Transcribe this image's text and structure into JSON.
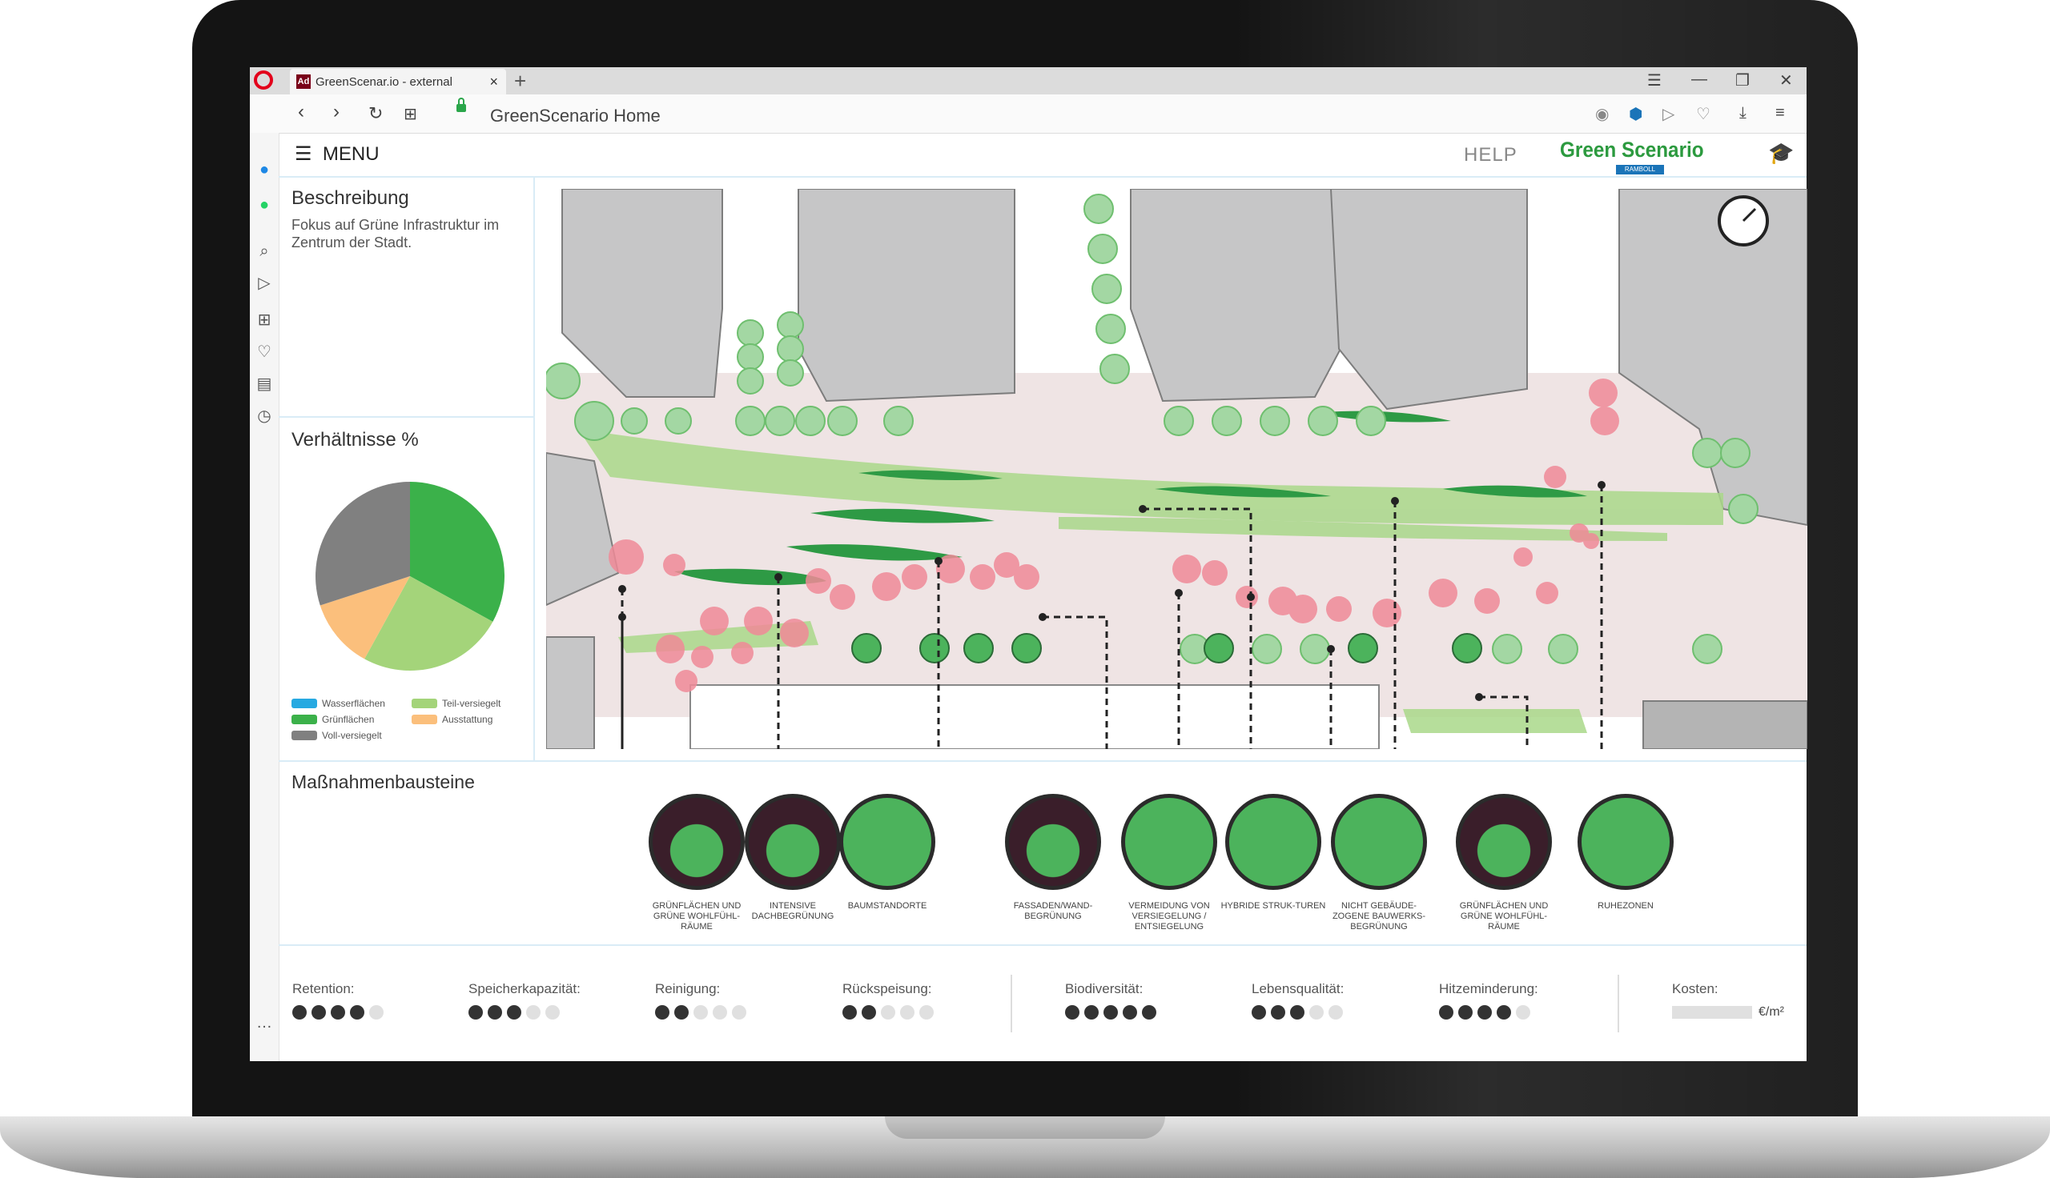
{
  "browser": {
    "tab_title": "GreenScenar.io - external",
    "tab_favicon": "Ad",
    "url": "GreenScenario Home"
  },
  "app": {
    "menu_label": "MENU",
    "help_label": "HELP",
    "logo_text": "Green Scenario",
    "logo_sub": "RAMBOLL"
  },
  "description": {
    "title": "Beschreibung",
    "text": "Fokus auf Grüne Infrastruktur im Zentrum der Stadt."
  },
  "ratios": {
    "title": "Verhältnisse %",
    "chart_data": {
      "type": "pie",
      "slices": [
        {
          "name": "Grünflächen",
          "value": 33,
          "color": "#3bb14a"
        },
        {
          "name": "Teil-versiegelt",
          "value": 25,
          "color": "#a4d47a"
        },
        {
          "name": "Ausstattung",
          "value": 12,
          "color": "#fbbf7c"
        },
        {
          "name": "Voll-versiegelt",
          "value": 30,
          "color": "#808080"
        }
      ],
      "legend": [
        {
          "name": "Wasserflächen",
          "color": "#27a9e1"
        },
        {
          "name": "Teil-versiegelt",
          "color": "#a4d47a"
        },
        {
          "name": "Grünflächen",
          "color": "#3bb14a"
        },
        {
          "name": "Ausstattung",
          "color": "#fbbf7c"
        },
        {
          "name": "Voll-versiegelt",
          "color": "#808080"
        }
      ]
    }
  },
  "measures": {
    "title": "Maßnahmenbausteine",
    "items": [
      {
        "label": "Grünflächen und grüne Wohlfühl-räume",
        "dark": true
      },
      {
        "label": "Intensive Dachbegrünung",
        "dark": true
      },
      {
        "label": "Baumstandorte",
        "dark": false
      },
      {
        "label": "Fassaden/Wand-begrünung",
        "dark": true
      },
      {
        "label": "Vermeidung von Versiegelung / Entsiegelung",
        "dark": false
      },
      {
        "label": "Hybride Struk-turen",
        "dark": false
      },
      {
        "label": "Nicht gebäude-zogene Bauwerks-begrünung",
        "dark": false
      },
      {
        "label": "Grünflächen und grüne Wohlfühl-räume",
        "dark": true
      },
      {
        "label": "Ruhezonen",
        "dark": false
      }
    ]
  },
  "ratings": [
    {
      "label": "Retention:",
      "score": 4
    },
    {
      "label": "Speicherkapazität:",
      "score": 3
    },
    {
      "label": "Reinigung:",
      "score": 2
    },
    {
      "label": "Rückspeisung:",
      "score": 2
    },
    {
      "label": "Biodiversität:",
      "score": 5
    },
    {
      "label": "Lebensqualität:",
      "score": 3
    },
    {
      "label": "Hitzeminderung:",
      "score": 4
    }
  ],
  "cost": {
    "label": "Kosten:",
    "unit": "€/m²"
  }
}
